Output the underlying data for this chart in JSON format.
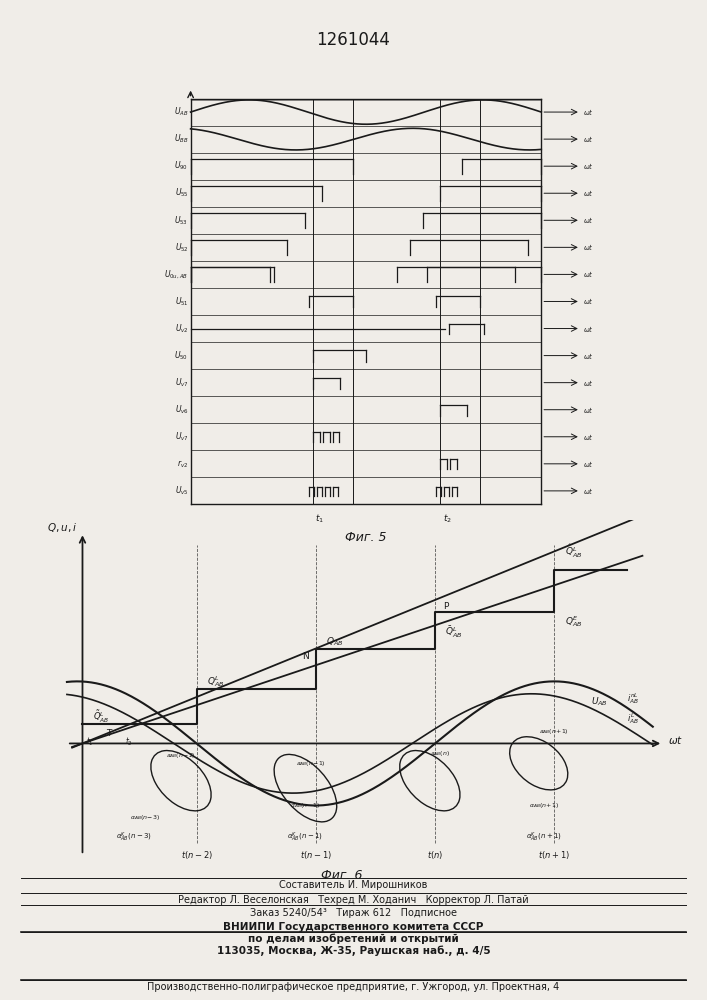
{
  "title": "1261044",
  "fig5_caption": "Фиг. 5",
  "fig6_caption": "Фиг. 6",
  "bottom_lines": [
    "Составитель И. Мирошников",
    "Редактор Л. Веселонская   Техред М. Ходанич   Корректор Л. Патай",
    "Заказ 5240/54³   Тираж 612   Подписное",
    "ВНИИПИ Государственного комитета СССР",
    "по делам изобретений и открытий",
    "113035, Москва, Ж-35, Раушская наб., д. 4/5",
    "Производственно-полиграфическое предприятие, г. Ужгород, ул. Проектная, 4"
  ],
  "bg": "#f0ede8",
  "lc": "#1a1a1a"
}
